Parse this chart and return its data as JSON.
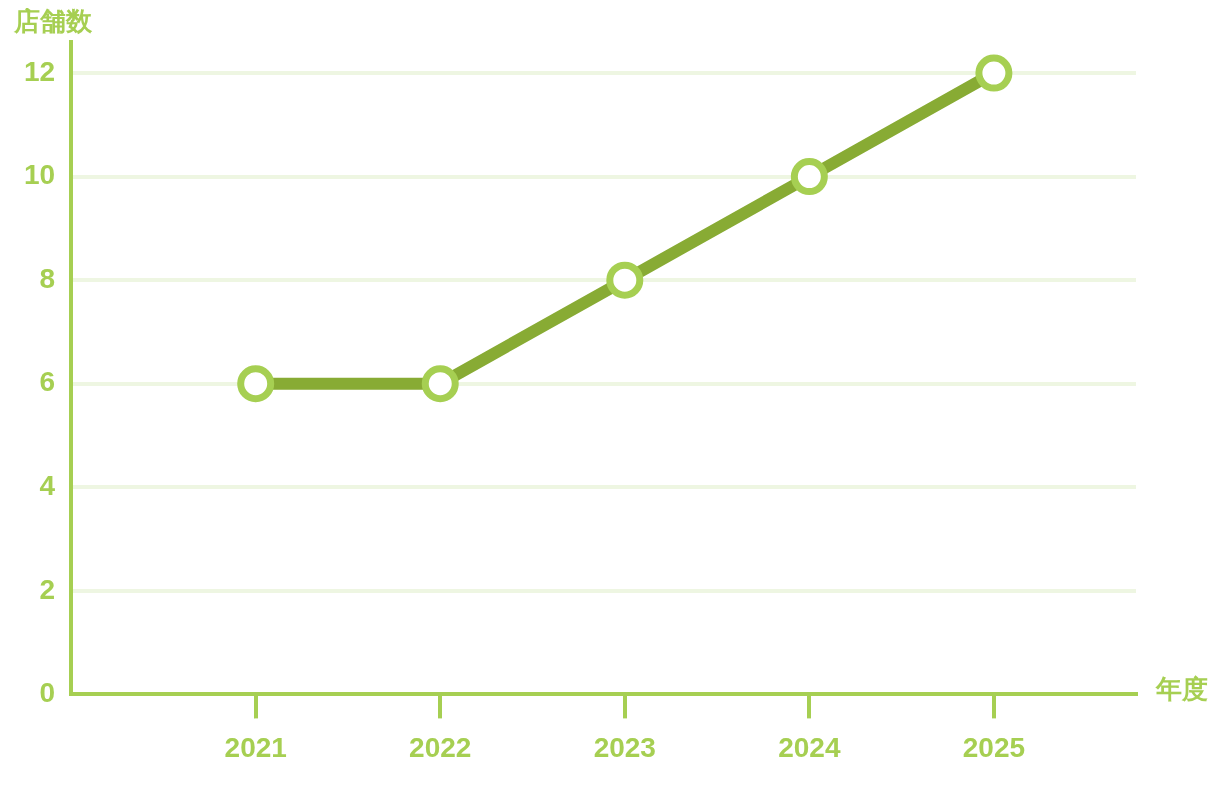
{
  "chart_data": {
    "type": "line",
    "ylabel": "店舗数",
    "xlabel": "年度",
    "x": [
      2021,
      2022,
      2023,
      2024,
      2025
    ],
    "series": [
      {
        "color": "#88ab34",
        "values": [
          6,
          6,
          8,
          10,
          12
        ]
      }
    ],
    "xlim": [
      2020,
      2025.77
    ],
    "xticks": [
      2021,
      2022,
      2023,
      2024,
      2025
    ],
    "ylim": [
      0,
      12.6
    ],
    "yticks": [
      0,
      2,
      4,
      6,
      8,
      10,
      12
    ],
    "grid": "y",
    "legend": false,
    "marker": "circle",
    "line_style": "solid"
  }
}
